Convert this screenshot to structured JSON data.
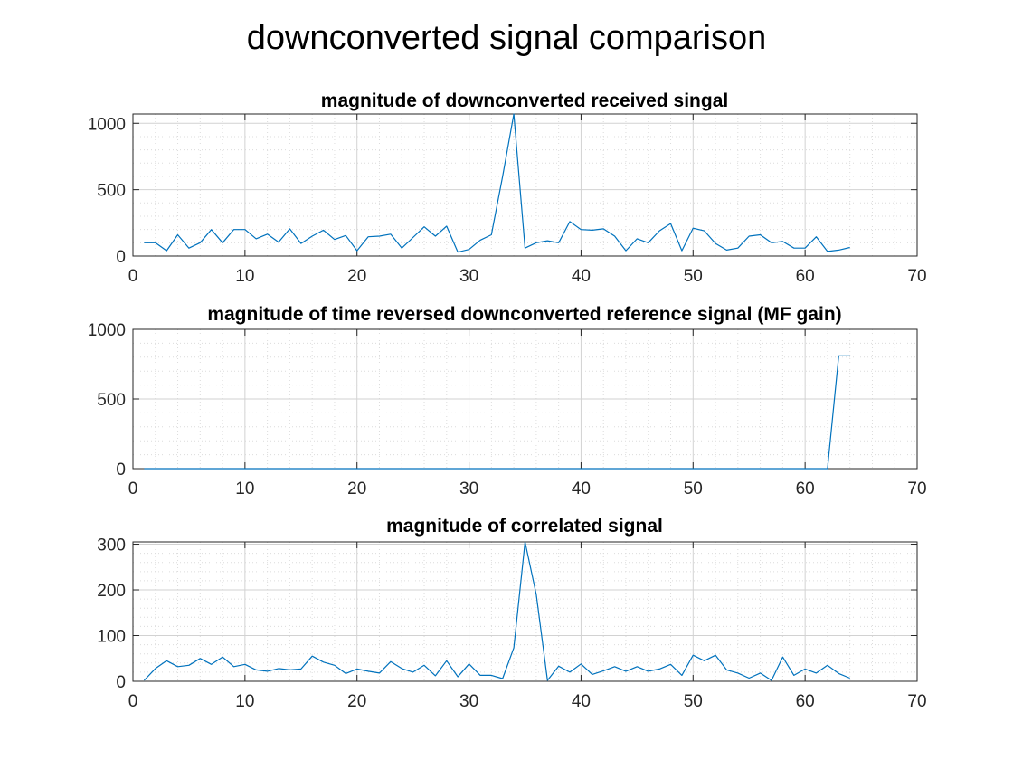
{
  "figure": {
    "title": "downconverted signal comparison"
  },
  "chart_data": [
    {
      "type": "line",
      "title": "magnitude of downconverted received singal",
      "xlabel": "",
      "ylabel": "",
      "xlim": [
        0,
        70
      ],
      "ylim": [
        0,
        1070
      ],
      "xticks": [
        0,
        10,
        20,
        30,
        40,
        50,
        60,
        70
      ],
      "yticks": [
        0,
        500,
        1000
      ],
      "grid": true,
      "minor_grid": true,
      "color": "#0072BD",
      "x": [
        1,
        2,
        3,
        4,
        5,
        6,
        7,
        8,
        9,
        10,
        11,
        12,
        13,
        14,
        15,
        16,
        17,
        18,
        19,
        20,
        21,
        22,
        23,
        24,
        25,
        26,
        27,
        28,
        29,
        30,
        31,
        32,
        33,
        34,
        35,
        36,
        37,
        38,
        39,
        40,
        41,
        42,
        43,
        44,
        45,
        46,
        47,
        48,
        49,
        50,
        51,
        52,
        53,
        54,
        55,
        56,
        57,
        58,
        59,
        60,
        61,
        62,
        63,
        64
      ],
      "y": [
        100,
        100,
        40,
        160,
        60,
        100,
        200,
        100,
        200,
        200,
        130,
        165,
        105,
        205,
        95,
        150,
        195,
        125,
        155,
        40,
        145,
        150,
        165,
        60,
        140,
        220,
        150,
        225,
        30,
        50,
        120,
        160,
        600,
        1070,
        60,
        100,
        115,
        100,
        260,
        200,
        195,
        205,
        150,
        40,
        130,
        100,
        190,
        245,
        40,
        210,
        190,
        95,
        45,
        60,
        150,
        160,
        100,
        110,
        60,
        60,
        145,
        35,
        45,
        65
      ]
    },
    {
      "type": "line",
      "title": "magnitude of time reversed downconverted reference signal (MF gain)",
      "xlabel": "",
      "ylabel": "",
      "xlim": [
        0,
        70
      ],
      "ylim": [
        0,
        1000
      ],
      "xticks": [
        0,
        10,
        20,
        30,
        40,
        50,
        60,
        70
      ],
      "yticks": [
        0,
        500,
        1000
      ],
      "grid": true,
      "minor_grid": true,
      "color": "#0072BD",
      "x": [
        1,
        62,
        63,
        64
      ],
      "y": [
        0,
        0,
        810,
        810
      ]
    },
    {
      "type": "line",
      "title": "magnitude of correlated signal",
      "xlabel": "",
      "ylabel": "",
      "xlim": [
        0,
        70
      ],
      "ylim": [
        0,
        305
      ],
      "xticks": [
        0,
        10,
        20,
        30,
        40,
        50,
        60,
        70
      ],
      "yticks": [
        0,
        100,
        200,
        300
      ],
      "grid": true,
      "minor_grid": true,
      "color": "#0072BD",
      "x": [
        1,
        2,
        3,
        4,
        5,
        6,
        7,
        8,
        9,
        10,
        11,
        12,
        13,
        14,
        15,
        16,
        17,
        18,
        19,
        20,
        21,
        22,
        23,
        24,
        25,
        26,
        27,
        28,
        29,
        30,
        31,
        32,
        33,
        34,
        35,
        36,
        37,
        38,
        39,
        40,
        41,
        42,
        43,
        44,
        45,
        46,
        47,
        48,
        49,
        50,
        51,
        52,
        53,
        54,
        55,
        56,
        57,
        58,
        59,
        60,
        61,
        62,
        63,
        64
      ],
      "y": [
        2,
        28,
        45,
        32,
        35,
        50,
        37,
        53,
        32,
        37,
        25,
        22,
        28,
        25,
        27,
        55,
        42,
        35,
        17,
        27,
        22,
        18,
        43,
        28,
        20,
        35,
        12,
        45,
        10,
        38,
        13,
        13,
        6,
        73,
        305,
        190,
        2,
        33,
        20,
        38,
        15,
        23,
        32,
        22,
        32,
        22,
        27,
        37,
        13,
        57,
        45,
        57,
        25,
        18,
        7,
        18,
        2,
        53,
        13,
        27,
        18,
        35,
        17,
        7
      ]
    }
  ]
}
